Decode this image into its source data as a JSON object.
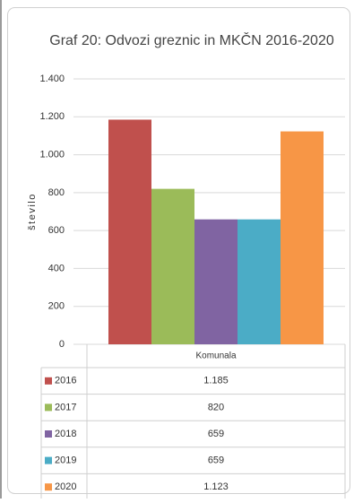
{
  "chart_data": {
    "type": "bar",
    "title": "Graf 20: Odvozi greznic in MKČN 2016-2020",
    "y_label": "število",
    "categories": [
      "Komunala"
    ],
    "series": [
      {
        "name": "2016",
        "color": "#c0504d",
        "values": [
          1185
        ],
        "value_labels": [
          "1.185"
        ]
      },
      {
        "name": "2017",
        "color": "#9bbb59",
        "values": [
          820
        ],
        "value_labels": [
          "820"
        ]
      },
      {
        "name": "2018",
        "color": "#8064a2",
        "values": [
          659
        ],
        "value_labels": [
          "659"
        ]
      },
      {
        "name": "2019",
        "color": "#4bacc6",
        "values": [
          659
        ],
        "value_labels": [
          "659"
        ]
      },
      {
        "name": "2020",
        "color": "#f79646",
        "values": [
          1123
        ],
        "value_labels": [
          "1.123"
        ]
      }
    ],
    "ylim": [
      0,
      1400
    ],
    "yticks": [
      0,
      200,
      400,
      600,
      800,
      {
        "value": 1000,
        "label": "1.000"
      },
      {
        "value": 1200,
        "label": "1.200"
      },
      {
        "value": 1400,
        "label": "1.400"
      }
    ],
    "grid": true,
    "data_table": true
  }
}
